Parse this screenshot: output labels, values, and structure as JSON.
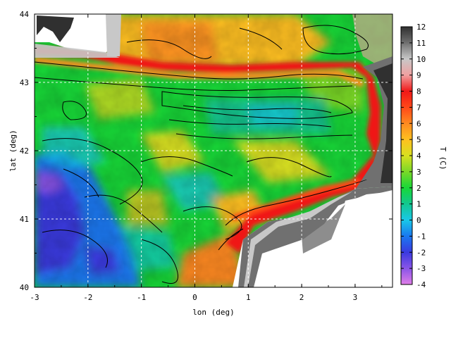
{
  "chart_data": {
    "type": "heatmap",
    "xlabel": "lon (deg)",
    "ylabel": "lat (deg)",
    "xlim": [
      -3,
      3.7
    ],
    "ylim": [
      40,
      44
    ],
    "x_ticks": [
      "-3",
      "-2",
      "-1",
      "0",
      "1",
      "2",
      "3"
    ],
    "y_ticks": [
      "40",
      "41",
      "42",
      "43",
      "44"
    ],
    "grid": true,
    "colorbar": {
      "label": "T (C)",
      "range": [
        -4,
        12
      ],
      "ticks": [
        "-4",
        "-3",
        "-2",
        "-1",
        "0",
        "1",
        "2",
        "3",
        "4",
        "5",
        "6",
        "7",
        "8",
        "9",
        "10",
        "11",
        "12"
      ],
      "colors": [
        "#e07ee8",
        "#8a55e8",
        "#3a3ae0",
        "#1a78f0",
        "#19c8e8",
        "#12c890",
        "#18d838",
        "#7ad828",
        "#d8e020",
        "#ffc020",
        "#ff8a20",
        "#ff4818",
        "#f01818",
        "#f0a0a0",
        "#c8c8c8",
        "#707070",
        "#303030"
      ]
    },
    "landmask_color": "#ffffff"
  }
}
